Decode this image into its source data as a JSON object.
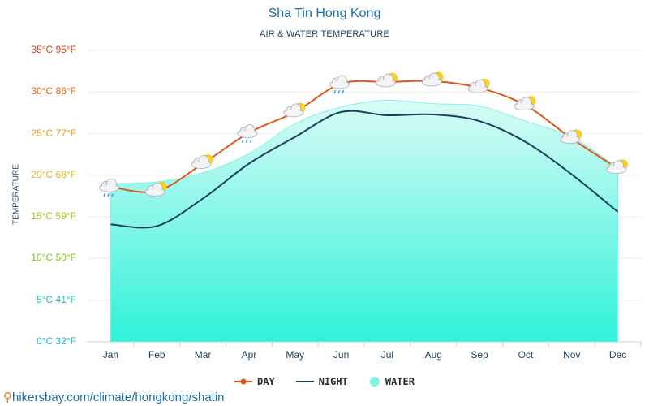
{
  "header": {
    "title": "Sha Tin Hong Kong",
    "subtitle": "AIR & WATER TEMPERATURE"
  },
  "footer": {
    "source_text": "hikersbay.com/climate/hongkong/shatin"
  },
  "chart_data": {
    "type": "line",
    "title": "Sha Tin Hong Kong",
    "subtitle": "AIR & WATER TEMPERATURE",
    "xlabel": "",
    "ylabel": "TEMPERATURE",
    "ylim": [
      0,
      35
    ],
    "grid": true,
    "legend_position": "bottom",
    "categories": [
      "Jan",
      "Feb",
      "Mar",
      "Apr",
      "May",
      "Jun",
      "Jul",
      "Aug",
      "Sep",
      "Oct",
      "Nov",
      "Dec"
    ],
    "y_ticks": [
      {
        "value": 0,
        "label": "0°C 32°F",
        "color": "#1ab9c9"
      },
      {
        "value": 5,
        "label": "5°C 41°F",
        "color": "#1bbfc3"
      },
      {
        "value": 10,
        "label": "10°C 50°F",
        "color": "#79c61a"
      },
      {
        "value": 15,
        "label": "15°C 59°F",
        "color": "#a8c41a"
      },
      {
        "value": 20,
        "label": "20°C 68°F",
        "color": "#d8b81a"
      },
      {
        "value": 25,
        "label": "25°C 77°F",
        "color": "#e89a1a"
      },
      {
        "value": 30,
        "label": "30°C 86°F",
        "color": "#e8651a"
      },
      {
        "value": 35,
        "label": "35°C 95°F",
        "color": "#e0421a"
      }
    ],
    "series": [
      {
        "name": "DAY",
        "color": "#e2561a",
        "values": [
          18.6,
          18.1,
          21.4,
          25.1,
          27.6,
          31.0,
          31.2,
          31.3,
          30.5,
          28.4,
          24.4,
          20.8
        ]
      },
      {
        "name": "NIGHT",
        "color": "#1a3f5c",
        "values": [
          14.1,
          13.9,
          17.2,
          21.4,
          24.6,
          27.6,
          27.2,
          27.3,
          26.5,
          24.0,
          20.1,
          15.6
        ]
      },
      {
        "name": "WATER",
        "color": "#7ff3e6",
        "values": [
          19.0,
          19.2,
          20.3,
          22.6,
          26.2,
          28.2,
          29.0,
          28.6,
          28.3,
          26.5,
          24.6,
          20.9
        ]
      }
    ],
    "weather_icons": [
      "cloud-rain-icon",
      "cloud-sun-icon",
      "cloud-sun-icon",
      "cloud-rain-icon",
      "cloud-sun-icon",
      "cloud-rain-icon",
      "cloud-sun-icon",
      "cloud-sun-icon",
      "cloud-sun-icon",
      "cloud-sun-icon",
      "cloud-sun-icon",
      "cloud-sun-icon"
    ],
    "legend": [
      {
        "label": "DAY",
        "color": "#e2561a",
        "marker": "line-dot"
      },
      {
        "label": "NIGHT",
        "color": "#1a3f5c",
        "marker": "line"
      },
      {
        "label": "WATER",
        "color": "#7ff3e6",
        "marker": "dot"
      }
    ]
  }
}
